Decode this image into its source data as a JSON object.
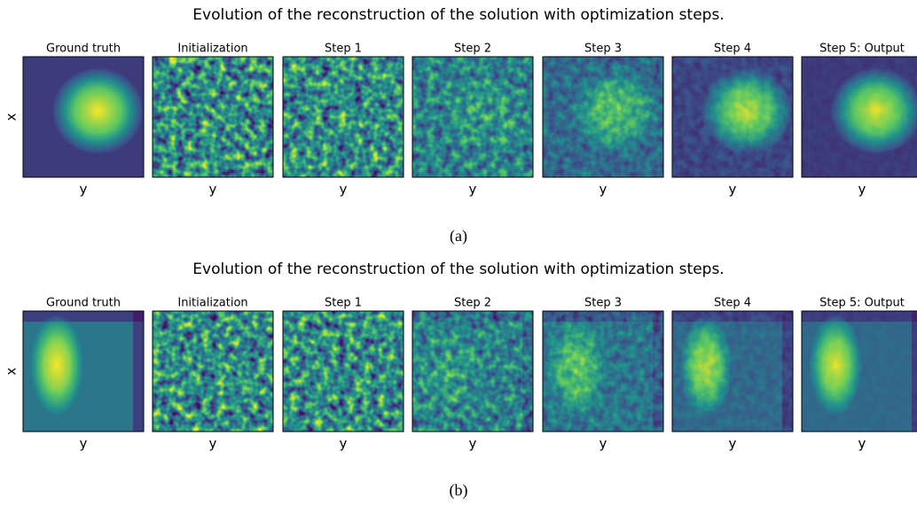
{
  "figures": [
    {
      "title": "Evolution of the reconstruction of the solution with optimization steps.",
      "ylabel": "x",
      "panels": [
        {
          "title": "Ground truth",
          "xlabel": "y"
        },
        {
          "title": "Initialization",
          "xlabel": "y"
        },
        {
          "title": "Step 1",
          "xlabel": "y"
        },
        {
          "title": "Step 2",
          "xlabel": "y"
        },
        {
          "title": "Step 3",
          "xlabel": "y"
        },
        {
          "title": "Step 4",
          "xlabel": "y"
        },
        {
          "title": "Step 5: Output",
          "xlabel": "y"
        }
      ],
      "caption": "(a)"
    },
    {
      "title": "Evolution of the reconstruction of the solution with optimization steps.",
      "ylabel": "x",
      "panels": [
        {
          "title": "Ground truth",
          "xlabel": "y"
        },
        {
          "title": "Initialization",
          "xlabel": "y"
        },
        {
          "title": "Step 1",
          "xlabel": "y"
        },
        {
          "title": "Step 2",
          "xlabel": "y"
        },
        {
          "title": "Step 3",
          "xlabel": "y"
        },
        {
          "title": "Step 4",
          "xlabel": "y"
        },
        {
          "title": "Step 5: Output",
          "xlabel": "y"
        }
      ],
      "caption": "(b)"
    }
  ]
}
